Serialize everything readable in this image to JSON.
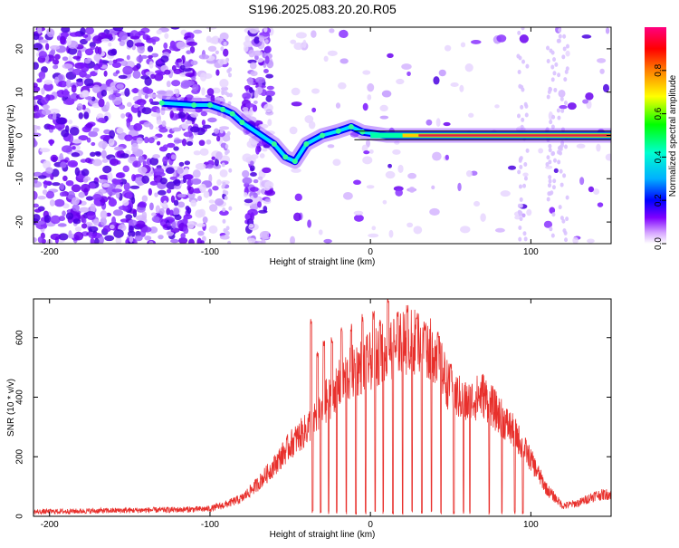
{
  "title": "S196.2025.083.20.20.R05",
  "colors": {
    "snr_line": "#e8302c",
    "carrier": "#d9214a",
    "trace": "#000000"
  },
  "chart_data": [
    {
      "type": "heatmap",
      "xlabel": "Height of straight line (km)",
      "ylabel": "Frequency (Hz)",
      "xlim": [
        -210,
        150
      ],
      "ylim": [
        -25,
        25
      ],
      "xticks": [
        -200,
        -100,
        0,
        100
      ],
      "yticks": [
        -20,
        -10,
        0,
        10,
        20
      ],
      "grid": false,
      "colorbar": {
        "label": "Normalized spectral amplitude",
        "range": [
          0,
          1
        ],
        "ticks": [
          0.0,
          0.2,
          0.4,
          0.6,
          0.8
        ],
        "colormap": [
          "#ffffff",
          "#7f00ff",
          "#0000ff",
          "#00ffff",
          "#00ff00",
          "#ffff00",
          "#ff7f00",
          "#ff0000",
          "#ff0080"
        ]
      },
      "ridge": [
        {
          "x": -130,
          "y": 7.5
        },
        {
          "x": -110,
          "y": 7
        },
        {
          "x": -100,
          "y": 7
        },
        {
          "x": -92,
          "y": 6
        },
        {
          "x": -86,
          "y": 5
        },
        {
          "x": -80,
          "y": 3
        },
        {
          "x": -60,
          "y": -2
        },
        {
          "x": -53,
          "y": -5
        },
        {
          "x": -47,
          "y": -6
        },
        {
          "x": -40,
          "y": -2
        },
        {
          "x": -30,
          "y": 0
        },
        {
          "x": -20,
          "y": 1
        },
        {
          "x": -12,
          "y": 2
        },
        {
          "x": -5,
          "y": 0.8
        },
        {
          "x": 10,
          "y": 0
        },
        {
          "x": 150,
          "y": 0
        }
      ],
      "carrier": {
        "x_start": 0,
        "x_end": 150,
        "y": 0
      },
      "reference_lines": [
        1,
        -1
      ]
    },
    {
      "type": "line",
      "xlabel": "Height of straight line (km)",
      "ylabel": "SNR (10 * v/v)",
      "xlim": [
        -210,
        150
      ],
      "ylim": [
        0,
        730
      ],
      "xticks": [
        -200,
        -100,
        0,
        100
      ],
      "yticks": [
        0,
        200,
        400,
        600
      ],
      "grid": false,
      "envelope": {
        "x": [
          -210,
          -150,
          -120,
          -100,
          -90,
          -80,
          -70,
          -60,
          -50,
          -40,
          -30,
          -20,
          -10,
          0,
          10,
          20,
          30,
          40,
          50,
          60,
          70,
          80,
          90,
          100,
          110,
          120,
          130,
          140,
          150
        ],
        "y": [
          15,
          20,
          22,
          25,
          40,
          60,
          110,
          170,
          240,
          290,
          370,
          440,
          490,
          520,
          560,
          580,
          590,
          550,
          420,
          380,
          410,
          340,
          280,
          190,
          90,
          35,
          45,
          70,
          75
        ]
      },
      "spikes": [
        {
          "x": -37,
          "y": 665
        },
        {
          "x": -33,
          "y": 560
        },
        {
          "x": -29,
          "y": 600
        },
        {
          "x": -24,
          "y": 610
        },
        {
          "x": -18,
          "y": 640
        },
        {
          "x": -12,
          "y": 650
        },
        {
          "x": -5,
          "y": 680
        },
        {
          "x": 2,
          "y": 690
        },
        {
          "x": 6,
          "y": 660
        },
        {
          "x": 11,
          "y": 735
        },
        {
          "x": 17,
          "y": 700
        },
        {
          "x": 23,
          "y": 710
        },
        {
          "x": 29,
          "y": 690
        },
        {
          "x": 34,
          "y": 650
        },
        {
          "x": 42,
          "y": 620
        },
        {
          "x": 50,
          "y": 520
        }
      ],
      "dropouts": [
        -36,
        -31,
        -26,
        -21,
        -15,
        -9,
        -3,
        3,
        8,
        14,
        20,
        26,
        32,
        38,
        44,
        52,
        58,
        62,
        74,
        82,
        90,
        95
      ]
    }
  ]
}
